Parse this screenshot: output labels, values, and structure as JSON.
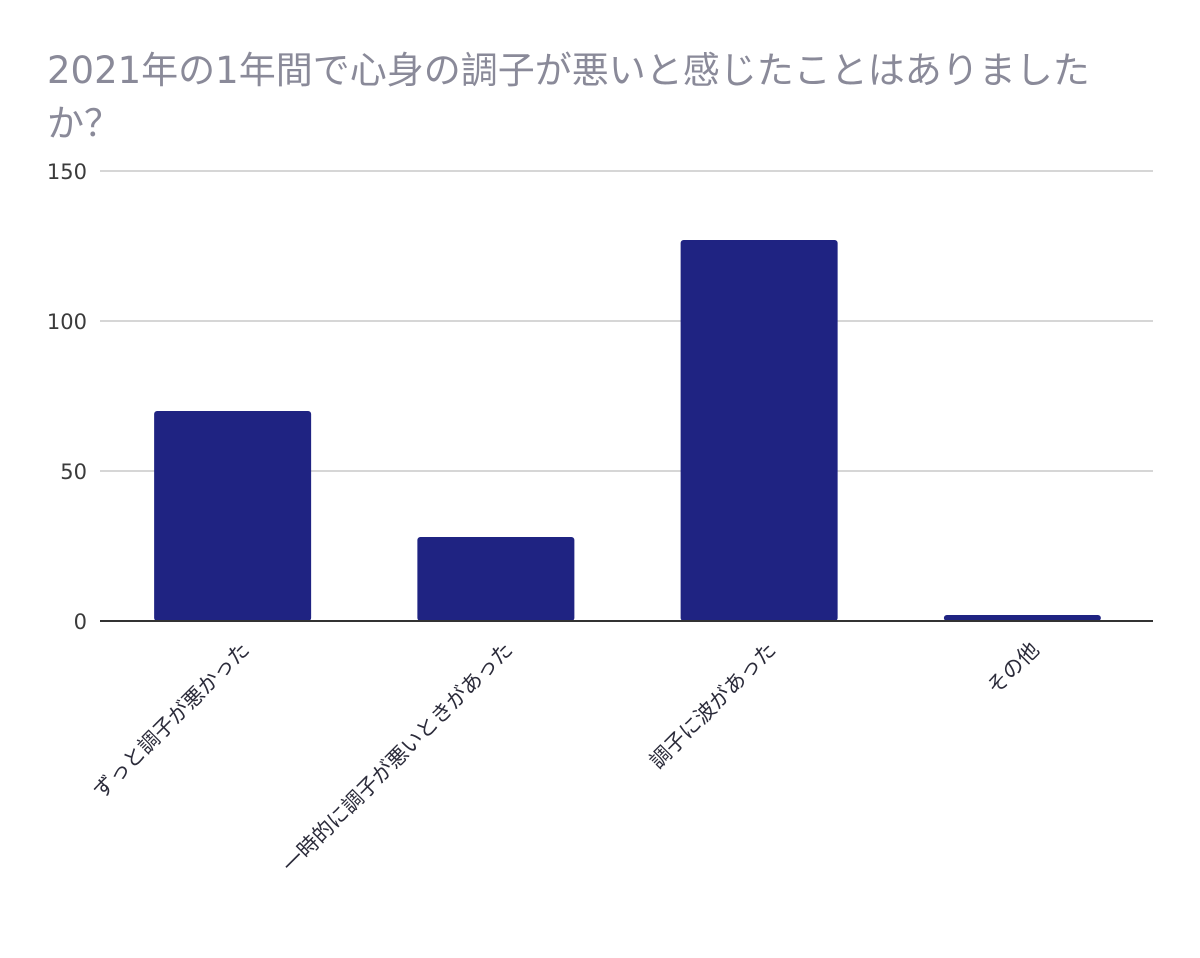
{
  "chart_data": {
    "type": "bar",
    "title": "2021年の1年間で心身の調子が悪いと感じたことはありましたか？",
    "categories": [
      "ずっと調子が悪かった",
      "一時的に調子が悪いときがあった",
      "調子に波があった",
      "その他"
    ],
    "values": [
      70,
      28,
      127,
      2
    ],
    "ylim": [
      0,
      150
    ],
    "yticks": [
      0,
      50,
      100,
      150
    ],
    "grid": true,
    "legend": "none",
    "colors": {
      "bar": "#1f2382",
      "grid": "#c8c8c8",
      "axis": "#333333"
    }
  }
}
